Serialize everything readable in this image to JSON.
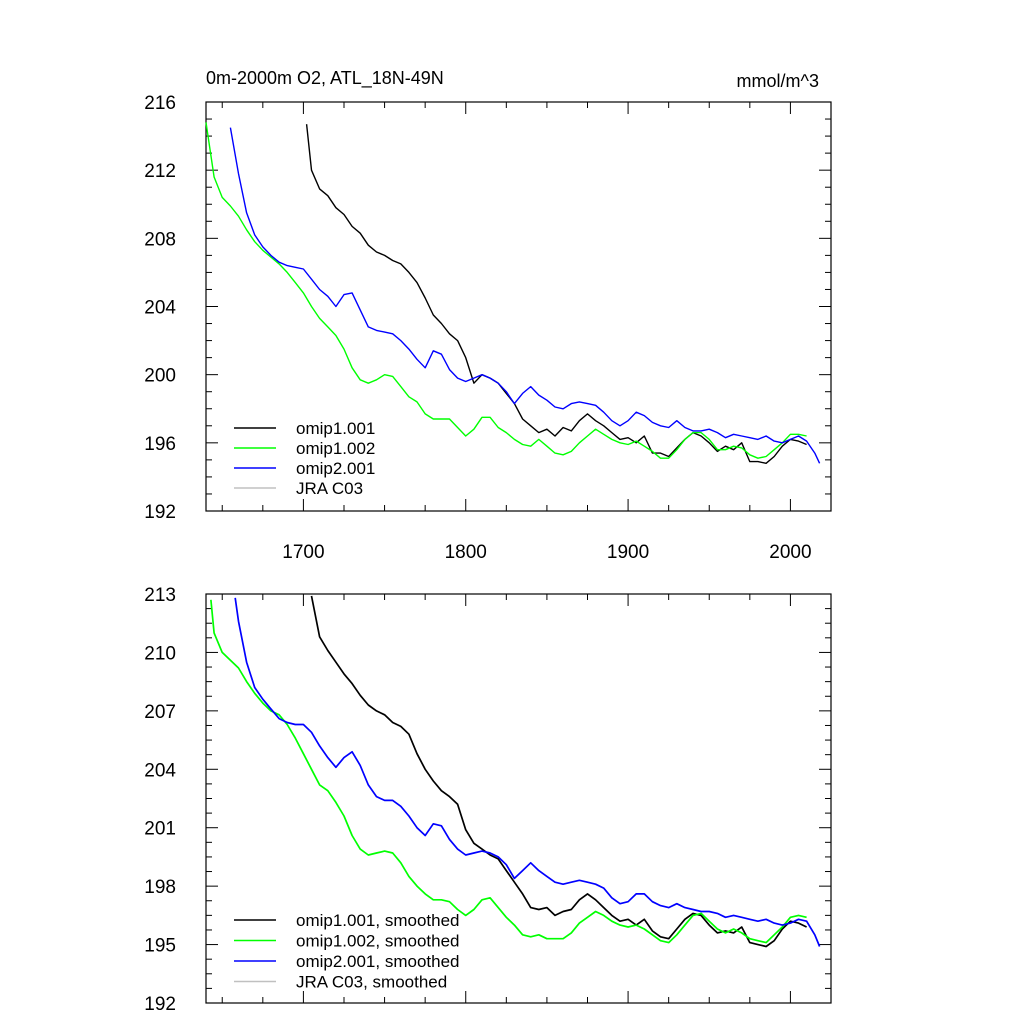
{
  "chart_data": [
    {
      "type": "line",
      "title": "0m-2000m O2, ATL_18N-49N",
      "units": "mmol/m^3",
      "xlim": [
        1640,
        2025
      ],
      "ylim": [
        192,
        216
      ],
      "x_ticks": [
        1700,
        1800,
        1900,
        2000
      ],
      "y_ticks": [
        192,
        196,
        200,
        204,
        208,
        212,
        216
      ],
      "legend_position": "bottom-left",
      "series": [
        {
          "name": "omip1.001",
          "color": "#000000",
          "x": [
            1702,
            1705,
            1710,
            1715,
            1720,
            1725,
            1730,
            1735,
            1740,
            1745,
            1750,
            1755,
            1760,
            1765,
            1770,
            1775,
            1780,
            1785,
            1790,
            1795,
            1800,
            1805,
            1810,
            1815,
            1820,
            1825,
            1830,
            1835,
            1840,
            1845,
            1850,
            1855,
            1860,
            1865,
            1870,
            1875,
            1880,
            1885,
            1890,
            1895,
            1900,
            1905,
            1910,
            1915,
            1920,
            1925,
            1930,
            1935,
            1940,
            1945,
            1950,
            1955,
            1960,
            1965,
            1970,
            1975,
            1980,
            1985,
            1990,
            1995,
            2000,
            2005,
            2010
          ],
          "y": [
            214.7,
            212.0,
            210.9,
            210.5,
            209.8,
            209.4,
            208.7,
            208.3,
            207.6,
            207.2,
            207.0,
            206.7,
            206.5,
            206.0,
            205.4,
            204.5,
            203.5,
            203.0,
            202.4,
            202.0,
            201.0,
            199.5,
            200.0,
            199.8,
            199.5,
            198.9,
            198.3,
            197.4,
            197.0,
            196.6,
            196.8,
            196.4,
            196.9,
            196.7,
            197.3,
            197.7,
            197.3,
            197.0,
            196.6,
            196.2,
            196.3,
            196.0,
            196.4,
            195.4,
            195.4,
            195.2,
            195.7,
            196.2,
            196.6,
            196.4,
            196.0,
            195.5,
            195.8,
            195.6,
            196.0,
            194.9,
            194.9,
            194.8,
            195.2,
            195.8,
            196.2,
            196.1,
            195.9
          ]
        },
        {
          "name": "omip1.002",
          "color": "#00ff00",
          "x": [
            1640,
            1645,
            1650,
            1655,
            1660,
            1665,
            1670,
            1675,
            1680,
            1685,
            1690,
            1695,
            1700,
            1705,
            1710,
            1715,
            1720,
            1725,
            1730,
            1735,
            1740,
            1745,
            1750,
            1755,
            1760,
            1765,
            1770,
            1775,
            1780,
            1785,
            1790,
            1795,
            1800,
            1805,
            1810,
            1815,
            1820,
            1825,
            1830,
            1835,
            1840,
            1845,
            1850,
            1855,
            1860,
            1865,
            1870,
            1875,
            1880,
            1885,
            1890,
            1895,
            1900,
            1905,
            1910,
            1915,
            1920,
            1925,
            1930,
            1935,
            1940,
            1945,
            1950,
            1955,
            1960,
            1965,
            1970,
            1975,
            1980,
            1985,
            1990,
            1995,
            2000,
            2005,
            2010
          ],
          "y": [
            214.8,
            211.6,
            210.4,
            209.9,
            209.3,
            208.5,
            207.8,
            207.3,
            206.9,
            206.5,
            206.0,
            205.4,
            204.8,
            204.0,
            203.3,
            202.8,
            202.3,
            201.5,
            200.4,
            199.7,
            199.5,
            199.7,
            200.0,
            199.9,
            199.3,
            198.7,
            198.4,
            197.7,
            197.4,
            197.4,
            197.4,
            196.9,
            196.4,
            196.8,
            197.5,
            197.5,
            196.9,
            196.6,
            196.2,
            195.9,
            195.8,
            196.2,
            195.8,
            195.4,
            195.3,
            195.5,
            196.0,
            196.4,
            196.8,
            196.5,
            196.2,
            196.0,
            195.9,
            196.1,
            195.8,
            195.5,
            195.1,
            195.1,
            195.6,
            196.2,
            196.6,
            196.6,
            196.2,
            195.6,
            195.6,
            195.8,
            195.7,
            195.3,
            195.1,
            195.2,
            195.6,
            196.0,
            196.5,
            196.5,
            196.4
          ]
        },
        {
          "name": "omip2.001",
          "color": "#0000ff",
          "x": [
            1655,
            1660,
            1665,
            1670,
            1675,
            1680,
            1685,
            1690,
            1695,
            1700,
            1705,
            1710,
            1715,
            1720,
            1725,
            1730,
            1735,
            1740,
            1745,
            1750,
            1755,
            1760,
            1765,
            1770,
            1775,
            1780,
            1785,
            1790,
            1795,
            1800,
            1805,
            1810,
            1815,
            1820,
            1825,
            1830,
            1835,
            1840,
            1845,
            1850,
            1855,
            1860,
            1865,
            1870,
            1875,
            1880,
            1885,
            1890,
            1895,
            1900,
            1905,
            1910,
            1915,
            1920,
            1925,
            1930,
            1935,
            1940,
            1945,
            1950,
            1955,
            1960,
            1965,
            1970,
            1975,
            1980,
            1985,
            1990,
            1995,
            2000,
            2005,
            2010,
            2015,
            2018
          ],
          "y": [
            214.5,
            211.8,
            209.5,
            208.2,
            207.5,
            207.0,
            206.6,
            206.4,
            206.3,
            206.2,
            205.6,
            205.0,
            204.6,
            204.0,
            204.7,
            204.8,
            203.8,
            202.8,
            202.6,
            202.5,
            202.4,
            202.0,
            201.5,
            200.9,
            200.4,
            201.4,
            201.2,
            200.3,
            199.8,
            199.6,
            199.8,
            200.0,
            199.8,
            199.5,
            199.0,
            198.3,
            198.9,
            199.3,
            198.8,
            198.5,
            198.1,
            198.0,
            198.3,
            198.4,
            198.3,
            198.2,
            197.8,
            197.3,
            197.0,
            197.3,
            197.8,
            197.6,
            197.2,
            197.0,
            196.9,
            197.3,
            196.9,
            196.7,
            196.7,
            196.8,
            196.6,
            196.3,
            196.5,
            196.4,
            196.3,
            196.2,
            196.4,
            196.1,
            196.0,
            196.2,
            196.4,
            196.1,
            195.4,
            194.8
          ]
        },
        {
          "name": "JRA C03",
          "color": "#c0c0c0",
          "x": [],
          "y": []
        }
      ]
    },
    {
      "type": "line",
      "title": "",
      "xlim": [
        1640,
        2025
      ],
      "ylim": [
        192,
        213
      ],
      "x_ticks": [
        1700,
        1800,
        1900,
        2000
      ],
      "y_ticks": [
        192,
        195,
        198,
        201,
        204,
        207,
        210,
        213
      ],
      "legend_position": "bottom-left",
      "series": [
        {
          "name": "omip1.001, smoothed",
          "color": "#000000",
          "x": [
            1705,
            1710,
            1715,
            1720,
            1725,
            1730,
            1735,
            1740,
            1745,
            1750,
            1755,
            1760,
            1765,
            1770,
            1775,
            1780,
            1785,
            1790,
            1795,
            1800,
            1805,
            1810,
            1815,
            1820,
            1825,
            1830,
            1835,
            1840,
            1845,
            1850,
            1855,
            1860,
            1865,
            1870,
            1875,
            1880,
            1885,
            1890,
            1895,
            1900,
            1905,
            1910,
            1915,
            1920,
            1925,
            1930,
            1935,
            1940,
            1945,
            1950,
            1955,
            1960,
            1965,
            1970,
            1975,
            1980,
            1985,
            1990,
            1995,
            2000,
            2005,
            2010
          ],
          "y": [
            212.9,
            210.8,
            210.1,
            209.5,
            208.9,
            208.4,
            207.8,
            207.3,
            207.0,
            206.8,
            206.4,
            206.2,
            205.8,
            204.8,
            204.0,
            203.4,
            202.9,
            202.6,
            202.2,
            200.9,
            200.2,
            199.9,
            199.6,
            199.4,
            198.8,
            198.2,
            197.6,
            196.9,
            196.8,
            196.9,
            196.5,
            196.7,
            196.8,
            197.3,
            197.6,
            197.3,
            196.9,
            196.5,
            196.2,
            196.3,
            196.0,
            196.3,
            195.7,
            195.4,
            195.3,
            195.8,
            196.3,
            196.6,
            196.5,
            196.0,
            195.6,
            195.7,
            195.6,
            195.9,
            195.1,
            195.0,
            194.9,
            195.2,
            195.8,
            196.2,
            196.1,
            195.9
          ]
        },
        {
          "name": "omip1.002, smoothed",
          "color": "#00ff00",
          "x": [
            1643,
            1645,
            1650,
            1655,
            1660,
            1665,
            1670,
            1675,
            1680,
            1685,
            1690,
            1695,
            1700,
            1705,
            1710,
            1715,
            1720,
            1725,
            1730,
            1735,
            1740,
            1745,
            1750,
            1755,
            1760,
            1765,
            1770,
            1775,
            1780,
            1785,
            1790,
            1795,
            1800,
            1805,
            1810,
            1815,
            1820,
            1825,
            1830,
            1835,
            1840,
            1845,
            1850,
            1855,
            1860,
            1865,
            1870,
            1875,
            1880,
            1885,
            1890,
            1895,
            1900,
            1905,
            1910,
            1915,
            1920,
            1925,
            1930,
            1935,
            1940,
            1945,
            1950,
            1955,
            1960,
            1965,
            1970,
            1975,
            1980,
            1985,
            1990,
            1995,
            2000,
            2005,
            2010
          ],
          "y": [
            212.7,
            211.0,
            210.0,
            209.6,
            209.2,
            208.5,
            207.9,
            207.4,
            207.0,
            206.8,
            206.3,
            205.6,
            204.8,
            204.0,
            203.2,
            202.9,
            202.3,
            201.6,
            200.6,
            199.9,
            199.6,
            199.7,
            199.8,
            199.7,
            199.2,
            198.5,
            198.0,
            197.6,
            197.3,
            197.3,
            197.2,
            196.8,
            196.5,
            196.8,
            197.3,
            197.4,
            196.9,
            196.4,
            196.0,
            195.5,
            195.4,
            195.5,
            195.3,
            195.3,
            195.3,
            195.6,
            196.1,
            196.4,
            196.7,
            196.5,
            196.2,
            196.0,
            195.9,
            196.0,
            195.8,
            195.5,
            195.2,
            195.1,
            195.5,
            196.0,
            196.5,
            196.6,
            196.2,
            195.8,
            195.6,
            195.8,
            195.6,
            195.3,
            195.2,
            195.1,
            195.5,
            195.9,
            196.4,
            196.5,
            196.4
          ]
        },
        {
          "name": "omip2.001, smoothed",
          "color": "#0000ff",
          "x": [
            1658,
            1660,
            1665,
            1670,
            1675,
            1680,
            1685,
            1690,
            1695,
            1700,
            1705,
            1710,
            1715,
            1720,
            1725,
            1730,
            1735,
            1740,
            1745,
            1750,
            1755,
            1760,
            1765,
            1770,
            1775,
            1780,
            1785,
            1790,
            1795,
            1800,
            1805,
            1810,
            1815,
            1820,
            1825,
            1830,
            1835,
            1840,
            1845,
            1850,
            1855,
            1860,
            1865,
            1870,
            1875,
            1880,
            1885,
            1890,
            1895,
            1900,
            1905,
            1910,
            1915,
            1920,
            1925,
            1930,
            1935,
            1940,
            1945,
            1950,
            1955,
            1960,
            1965,
            1970,
            1975,
            1980,
            1985,
            1990,
            1995,
            2000,
            2005,
            2010,
            2015,
            2018
          ],
          "y": [
            212.8,
            211.6,
            209.5,
            208.2,
            207.6,
            207.1,
            206.6,
            206.4,
            206.3,
            206.3,
            205.9,
            205.2,
            204.6,
            204.1,
            204.6,
            204.9,
            204.2,
            203.2,
            202.6,
            202.4,
            202.4,
            202.1,
            201.6,
            201.0,
            200.6,
            201.2,
            201.1,
            200.4,
            199.9,
            199.6,
            199.7,
            199.8,
            199.7,
            199.5,
            199.1,
            198.4,
            198.8,
            199.2,
            198.8,
            198.5,
            198.2,
            198.1,
            198.2,
            198.3,
            198.2,
            198.1,
            197.9,
            197.4,
            197.1,
            197.2,
            197.6,
            197.6,
            197.2,
            197.0,
            196.9,
            197.1,
            196.9,
            196.8,
            196.7,
            196.7,
            196.6,
            196.4,
            196.5,
            196.4,
            196.3,
            196.2,
            196.3,
            196.1,
            196.0,
            196.1,
            196.3,
            196.2,
            195.5,
            194.9
          ]
        },
        {
          "name": "JRA C03, smoothed",
          "color": "#c0c0c0",
          "x": [],
          "y": []
        }
      ]
    }
  ]
}
